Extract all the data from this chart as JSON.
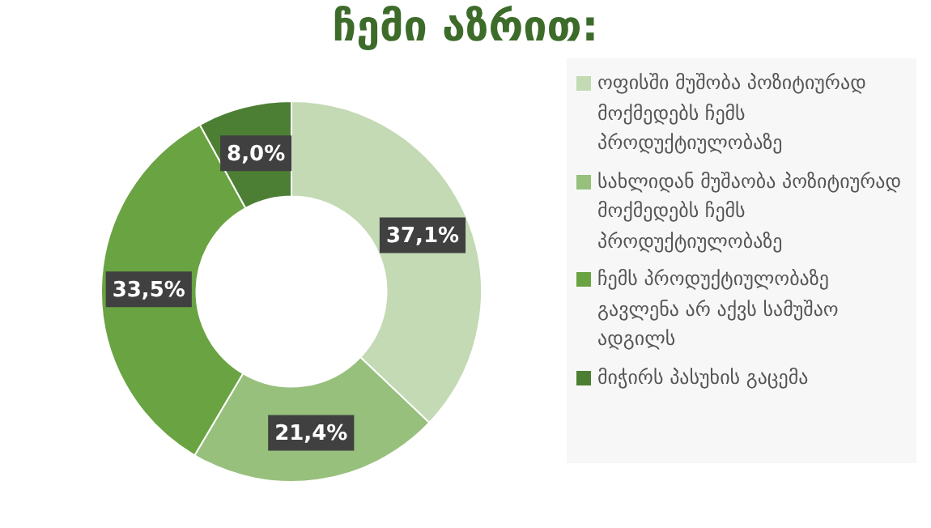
{
  "chart_data": {
    "type": "donut",
    "title": "ჩემი აზრით:",
    "categories": [
      "ოფისში მუშობა პოზიტიურად მოქმედებს ჩემს პროდუქტიულობაზე",
      "სახლიდან მუშაობა პოზიტიურად მოქმედებს ჩემს პროდუქტიულობაზე",
      "ჩემს პროდუქტიულობაზე გავლენა არ აქვს სამუშაო ადგილს",
      "მიჭირს პასუხის გაცემა"
    ],
    "values": [
      37.1,
      21.4,
      33.5,
      8.0
    ],
    "value_labels": [
      "37,1%",
      "21,4%",
      "33,5%",
      "8,0%"
    ],
    "colors": [
      "#c3dab5",
      "#97c07d",
      "#6aa342",
      "#4c7f33"
    ],
    "legend": "right"
  }
}
